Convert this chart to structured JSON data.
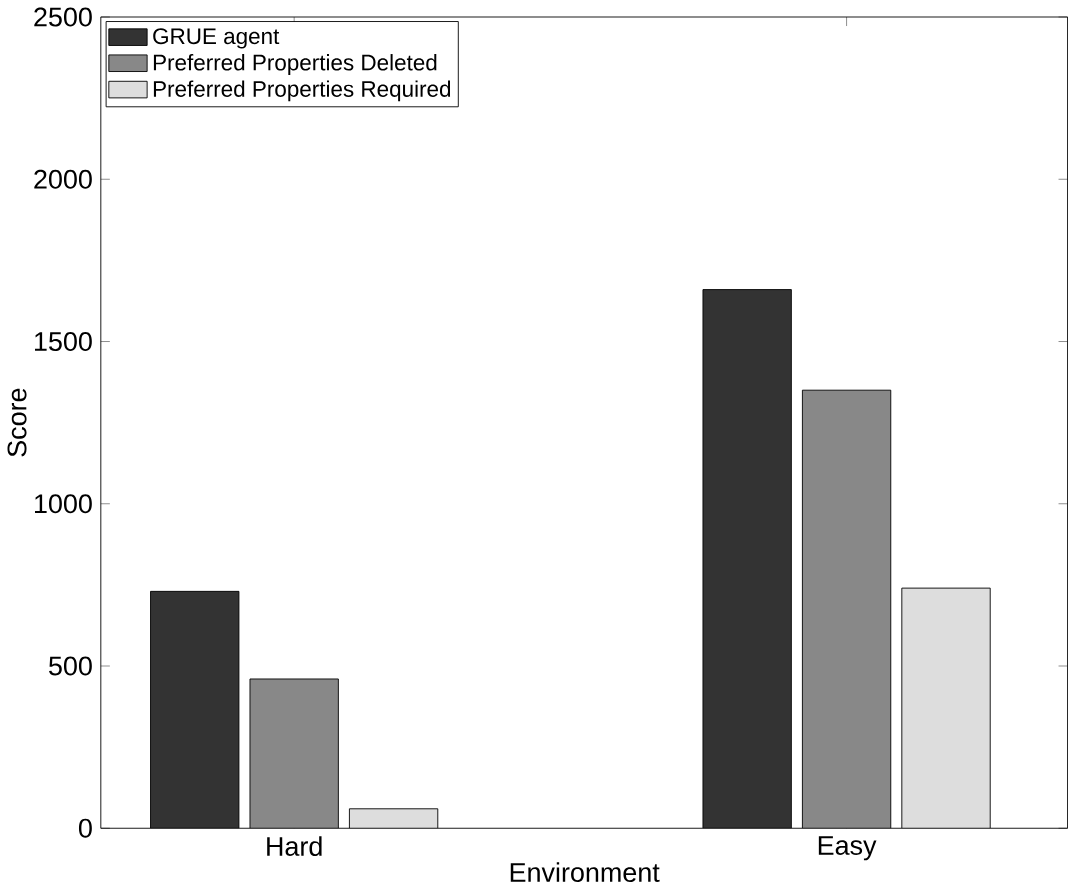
{
  "chart_data": {
    "type": "bar",
    "xlabel": "Environment",
    "ylabel": "Score",
    "categories": [
      "Hard",
      "Easy"
    ],
    "series": [
      {
        "name": "GRUE agent",
        "color": "#333333",
        "values": [
          730,
          1660
        ]
      },
      {
        "name": "Preferred Properties Deleted",
        "color": "#888888",
        "values": [
          460,
          1350
        ]
      },
      {
        "name": "Preferred Properties Required",
        "color": "#dddddd",
        "values": [
          60,
          740
        ]
      }
    ],
    "ylim": [
      0,
      2500
    ],
    "yticks": [
      0,
      500,
      1000,
      1500,
      2000,
      2500
    ],
    "legend": "top left",
    "grid": false
  }
}
